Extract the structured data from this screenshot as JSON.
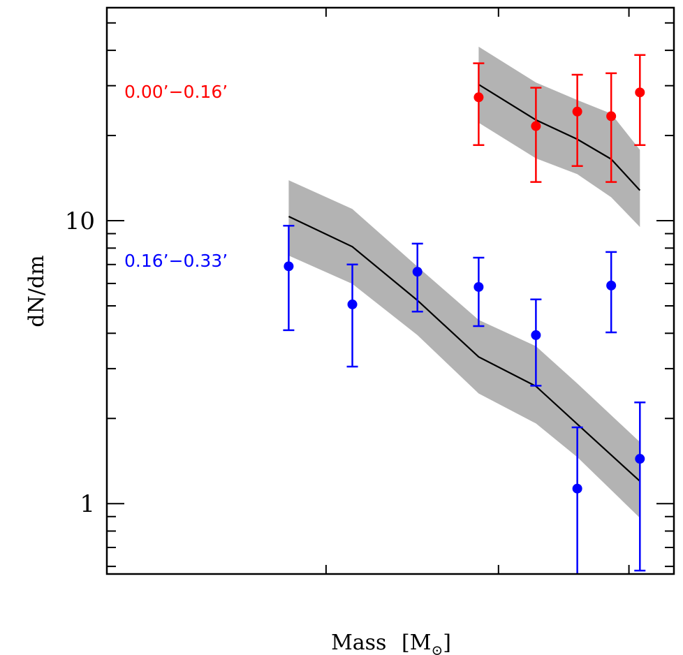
{
  "chart_data": {
    "type": "scatter",
    "title": "",
    "xlabel": "Mass [M⊙]",
    "xlabel_main": "Mass",
    "xlabel_unit_symbol": "M",
    "xlabel_unit_subscript": "⊙",
    "ylabel": "dN/dm",
    "xscale": "log",
    "yscale": "log",
    "xlim": [
      0.0624,
      1.27
    ],
    "ylim": [
      0.564,
      56.6
    ],
    "x_major_ticks": [
      0.2,
      0.5,
      1.0
    ],
    "x_tick_labels_visible": false,
    "y_major_ticks": [
      1,
      10
    ],
    "y_tick_labels": [
      "1",
      "10"
    ],
    "y_minor_ticks": [
      0.6,
      0.7,
      0.8,
      0.9,
      2,
      3,
      4,
      5,
      6,
      7,
      8,
      9,
      20,
      30,
      40,
      50
    ],
    "grid": false,
    "series": [
      {
        "name": "0.00’−0.16’",
        "label": "0.00’−0.16’",
        "color": "#ff0000",
        "x": [
          0.45,
          0.61,
          0.76,
          0.91,
          1.06
        ],
        "y": [
          27.3,
          21.6,
          24.3,
          23.4,
          28.4
        ],
        "yerr_upper": [
          36.0,
          29.5,
          32.8,
          33.2,
          38.5
        ],
        "yerr_lower": [
          18.5,
          13.7,
          15.6,
          13.7,
          18.5
        ],
        "model": {
          "x": [
            0.45,
            0.61,
            0.76,
            0.91,
            1.06
          ],
          "y": [
            30.3,
            22.7,
            19.4,
            16.5,
            12.8
          ],
          "band_upper": [
            41.2,
            30.8,
            26.7,
            23.9,
            17.8
          ],
          "band_lower": [
            22.2,
            16.6,
            14.6,
            12.1,
            9.5
          ]
        }
      },
      {
        "name": "0.16’−0.33’",
        "label": "0.16’−0.33’",
        "color": "#0000ff",
        "x": [
          0.164,
          0.23,
          0.325,
          0.45,
          0.61,
          0.76,
          0.91,
          1.06
        ],
        "y": [
          6.9,
          5.06,
          6.6,
          5.83,
          3.94,
          1.13,
          5.9,
          1.44
        ],
        "yerr_upper": [
          9.6,
          7.0,
          8.3,
          7.4,
          5.27,
          1.86,
          7.75,
          2.28
        ],
        "yerr_lower": [
          4.1,
          3.05,
          4.77,
          4.24,
          2.61,
          0.5,
          4.03,
          0.58
        ],
        "model": {
          "x": [
            0.164,
            0.23,
            0.325,
            0.45,
            0.61,
            0.76,
            1.06
          ],
          "y": [
            10.35,
            8.09,
            5.23,
            3.3,
            2.6,
            1.91,
            1.2
          ],
          "band_upper": [
            13.9,
            11.0,
            6.88,
            4.46,
            3.6,
            2.66,
            1.65
          ],
          "band_lower": [
            7.53,
            5.98,
            3.94,
            2.45,
            1.92,
            1.46,
            0.89
          ]
        }
      }
    ],
    "model_line_color": "#000000",
    "band_color": "#b3b3b3"
  }
}
